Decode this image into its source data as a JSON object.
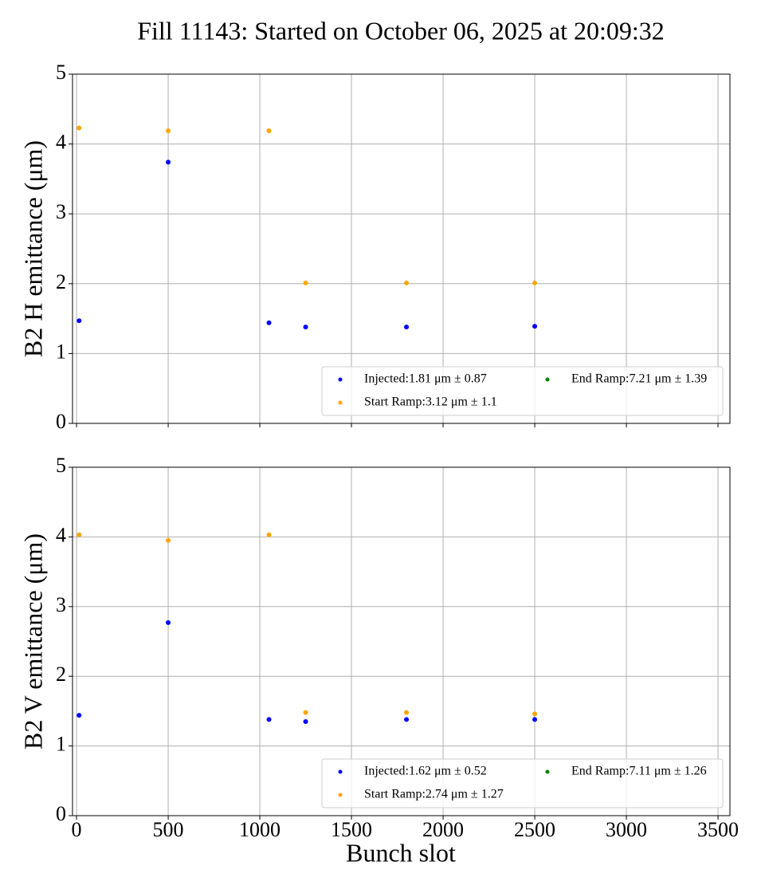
{
  "chart_data": [
    {
      "type": "scatter",
      "title": "Fill 11143: Started on October 06, 2025 at 20:09:32",
      "y_label": "B2 H emittance (μm)",
      "x": [
        14,
        500,
        1050,
        1250,
        1800,
        2500
      ],
      "series": [
        {
          "name": "Injected:1.81 μm ± 0.87",
          "color": "#0000ff",
          "values": [
            1.47,
            3.74,
            1.44,
            1.38,
            1.38,
            1.39
          ]
        },
        {
          "name": "Start Ramp:3.12 μm ± 1.1",
          "color": "#ffa500",
          "values": [
            4.23,
            4.19,
            4.19,
            2.01,
            2.01,
            2.01
          ]
        },
        {
          "name": "End Ramp:7.21 μm ± 1.39",
          "color": "#008000",
          "values": [
            null,
            null,
            null,
            null,
            null,
            null
          ]
        }
      ],
      "xlim": [
        -22,
        3565
      ],
      "xticks": [
        0,
        500,
        1000,
        1500,
        2000,
        2500,
        3000,
        3500
      ],
      "xtick_labels": false,
      "ylim": [
        0,
        5
      ],
      "yticks": [
        0,
        1,
        2,
        3,
        4,
        5
      ],
      "grid": true,
      "legend": "lower right"
    },
    {
      "type": "scatter",
      "x_label": "Bunch slot",
      "y_label": "B2 V emittance (μm)",
      "x": [
        14,
        500,
        1050,
        1250,
        1800,
        2500
      ],
      "series": [
        {
          "name": "Injected:1.62 μm ± 0.52",
          "color": "#0000ff",
          "values": [
            1.44,
            2.77,
            1.38,
            1.35,
            1.38,
            1.38
          ]
        },
        {
          "name": "Start Ramp:2.74 μm ± 1.27",
          "color": "#ffa500",
          "values": [
            4.03,
            3.95,
            4.03,
            1.48,
            1.48,
            1.46
          ]
        },
        {
          "name": "End Ramp:7.11 μm ± 1.26",
          "color": "#008000",
          "values": [
            null,
            null,
            null,
            null,
            null,
            null
          ]
        }
      ],
      "xlim": [
        -22,
        3565
      ],
      "xticks": [
        0,
        500,
        1000,
        1500,
        2000,
        2500,
        3000,
        3500
      ],
      "xtick_labels": true,
      "ylim": [
        0,
        5
      ],
      "yticks": [
        0,
        1,
        2,
        3,
        4,
        5
      ],
      "grid": true,
      "legend": "lower right"
    }
  ]
}
